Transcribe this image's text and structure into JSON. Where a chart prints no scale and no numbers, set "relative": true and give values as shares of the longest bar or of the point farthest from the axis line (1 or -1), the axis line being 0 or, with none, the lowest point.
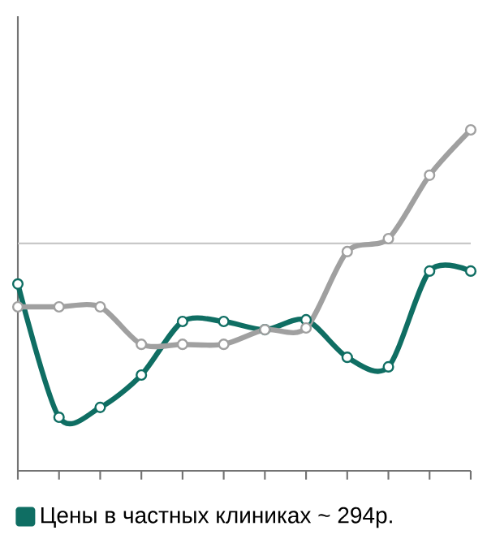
{
  "chart_data": {
    "type": "line",
    "relative": true,
    "categories": [
      null,
      null,
      null,
      null,
      null,
      null,
      null,
      null,
      null,
      null,
      null,
      null
    ],
    "series": [
      {
        "name": "Цены в частных клиниках ~ 294р.",
        "color": "#0f6e63",
        "values": [
          0.548,
          0.157,
          0.186,
          0.281,
          0.438,
          0.438,
          0.414,
          0.443,
          0.333,
          0.305,
          0.586,
          0.586
        ]
      },
      {
        "color": "#a0a0a0",
        "values": [
          0.481,
          0.481,
          0.481,
          0.371,
          0.371,
          0.371,
          0.414,
          0.419,
          0.643,
          0.681,
          0.867,
          1.0
        ]
      }
    ],
    "ref_lines": [
      {
        "axis": "y",
        "value": 0.667,
        "color": "#c8c8c8"
      }
    ],
    "marker": "circle",
    "line_style": "solid",
    "legend": "bottom left"
  }
}
